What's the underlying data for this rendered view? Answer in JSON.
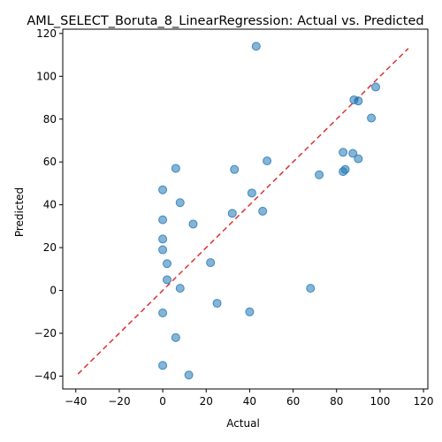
{
  "chart_data": {
    "type": "scatter",
    "title": "AML_SELECT_Boruta_8_LinearRegression: Actual vs. Predicted",
    "xlabel": "Actual",
    "ylabel": "Predicted",
    "xlim": [
      -46,
      122
    ],
    "ylim": [
      -46,
      122
    ],
    "xticks": [
      -40,
      -20,
      0,
      20,
      40,
      60,
      80,
      100,
      120
    ],
    "yticks": [
      -40,
      -20,
      0,
      20,
      40,
      60,
      80,
      100,
      120
    ],
    "grid": false,
    "colors": {
      "points": "#1f77b4",
      "reference_line": "#e03030"
    },
    "reference_line": {
      "from": [
        -39,
        -39
      ],
      "to": [
        113,
        113
      ],
      "style": "dashed"
    },
    "points": [
      {
        "x": 43,
        "y": 114
      },
      {
        "x": 98,
        "y": 95
      },
      {
        "x": 88,
        "y": 89
      },
      {
        "x": 90,
        "y": 88.5
      },
      {
        "x": 96,
        "y": 80.5
      },
      {
        "x": 83,
        "y": 64.5
      },
      {
        "x": 87.5,
        "y": 64
      },
      {
        "x": 90,
        "y": 61.5
      },
      {
        "x": 48,
        "y": 60.5
      },
      {
        "x": 6,
        "y": 57
      },
      {
        "x": 33,
        "y": 56.5
      },
      {
        "x": 84,
        "y": 56.5
      },
      {
        "x": 83,
        "y": 55.5
      },
      {
        "x": 72,
        "y": 54
      },
      {
        "x": 0,
        "y": 47
      },
      {
        "x": 41,
        "y": 45.5
      },
      {
        "x": 8,
        "y": 41
      },
      {
        "x": 46,
        "y": 37
      },
      {
        "x": 32,
        "y": 36
      },
      {
        "x": 0,
        "y": 33
      },
      {
        "x": 14,
        "y": 31
      },
      {
        "x": 0,
        "y": 24
      },
      {
        "x": 0,
        "y": 19
      },
      {
        "x": 22,
        "y": 13
      },
      {
        "x": 2,
        "y": 12.5
      },
      {
        "x": 2,
        "y": 5
      },
      {
        "x": 8,
        "y": 1
      },
      {
        "x": 68,
        "y": 1
      },
      {
        "x": 25,
        "y": -6
      },
      {
        "x": 40,
        "y": -10
      },
      {
        "x": 0,
        "y": -10.5
      },
      {
        "x": 6,
        "y": -22
      },
      {
        "x": 0,
        "y": -35
      },
      {
        "x": 12,
        "y": -39.5
      }
    ]
  }
}
